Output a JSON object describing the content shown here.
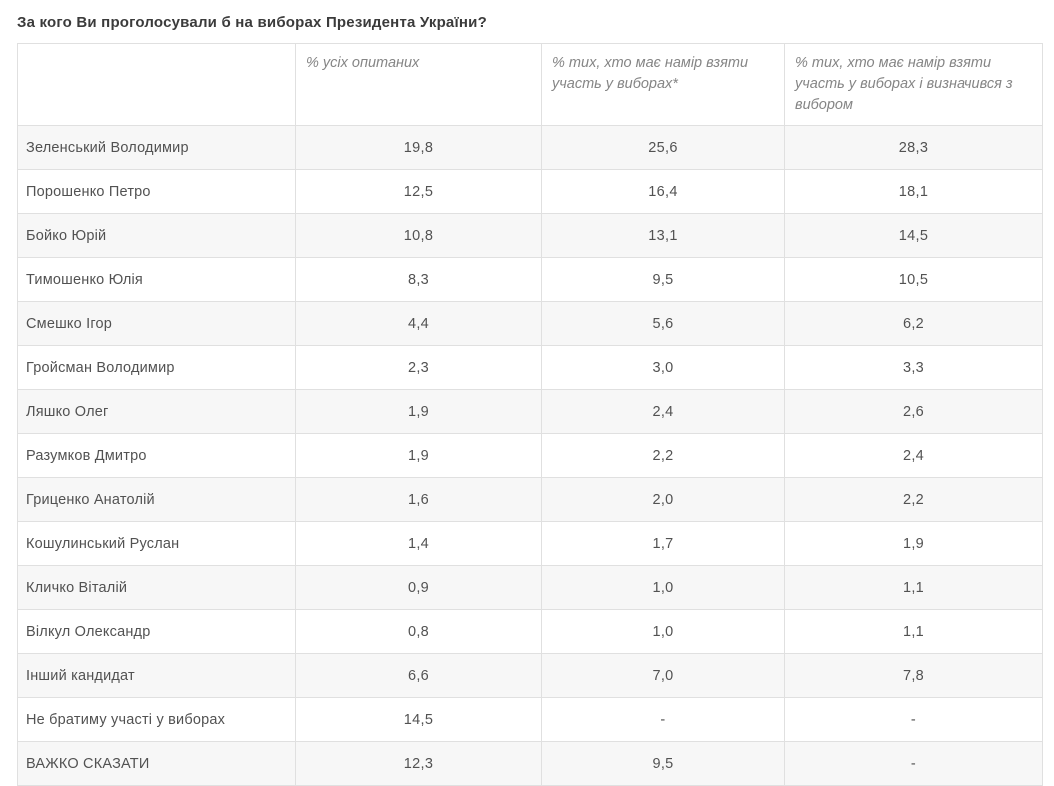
{
  "page": {
    "title": "За кого Ви проголосували б на виборах Президента України?"
  },
  "colors": {
    "title_text": "#3b3b3b",
    "header_text": "#858585",
    "body_text": "#525252",
    "row_stripe": "#f7f7f7",
    "cell_border": "#e0e0e0",
    "background": "#ffffff"
  },
  "table": {
    "columns": [
      "",
      "% усіх опитаних",
      "% тих, хто має намір взяти участь у виборах*",
      "% тих, хто має намір взяти участь у виборах і визначився з вибором"
    ],
    "rows": [
      {
        "name": "Зеленський Володимир",
        "values": [
          "19,8",
          "25,6",
          "28,3"
        ]
      },
      {
        "name": "Порошенко Петро",
        "values": [
          "12,5",
          "16,4",
          "18,1"
        ]
      },
      {
        "name": "Бойко Юрій",
        "values": [
          "10,8",
          "13,1",
          "14,5"
        ]
      },
      {
        "name": "Тимошенко Юлія",
        "values": [
          "8,3",
          "9,5",
          "10,5"
        ]
      },
      {
        "name": "Смешко Ігор",
        "values": [
          "4,4",
          "5,6",
          "6,2"
        ]
      },
      {
        "name": "Гройсман Володимир",
        "values": [
          "2,3",
          "3,0",
          "3,3"
        ]
      },
      {
        "name": "Ляшко Олег",
        "values": [
          "1,9",
          "2,4",
          "2,6"
        ]
      },
      {
        "name": "Разумков Дмитро",
        "values": [
          "1,9",
          "2,2",
          "2,4"
        ]
      },
      {
        "name": "Гриценко Анатолій",
        "values": [
          "1,6",
          "2,0",
          "2,2"
        ]
      },
      {
        "name": "Кошулинський Руслан",
        "values": [
          "1,4",
          "1,7",
          "1,9"
        ]
      },
      {
        "name": "Кличко Віталій",
        "values": [
          "0,9",
          "1,0",
          "1,1"
        ]
      },
      {
        "name": "Вілкул Олександр",
        "values": [
          "0,8",
          "1,0",
          "1,1"
        ]
      },
      {
        "name": "Інший кандидат",
        "values": [
          "6,6",
          "7,0",
          "7,8"
        ]
      },
      {
        "name": "Не братиму участі у виборах",
        "values": [
          "14,5",
          "-",
          "-"
        ]
      },
      {
        "name": "ВАЖКО СКАЗАТИ",
        "values": [
          "12,3",
          "9,5",
          "-"
        ]
      }
    ]
  }
}
